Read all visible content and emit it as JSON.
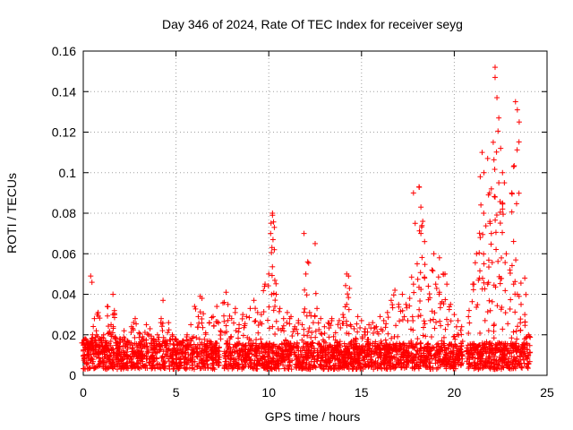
{
  "chart_data": {
    "type": "scatter",
    "title": "Day 346 of 2024, Rate Of TEC Index for receiver seyg",
    "xlabel": "GPS time / hours",
    "ylabel": "ROTI / TECUs",
    "xlim": [
      0,
      25
    ],
    "ylim": [
      0,
      0.16
    ],
    "xticks": [
      0,
      5,
      10,
      15,
      20,
      25
    ],
    "yticks": [
      0,
      0.02,
      0.04,
      0.06,
      0.08,
      0.1,
      0.12,
      0.14,
      0.16
    ],
    "xtick_labels": [
      "0",
      "5",
      "10",
      "15",
      "20",
      "25"
    ],
    "ytick_labels": [
      "0",
      "0.02",
      "0.04",
      "0.06",
      "0.08",
      "0.1",
      "0.12",
      "0.14",
      "0.16"
    ],
    "grid": true,
    "marker": "+",
    "color": "#ff0000",
    "series": [
      {
        "x": [
          0.0,
          0.1,
          0.2,
          0.3,
          0.4,
          0.5,
          0.6,
          0.7,
          0.8,
          0.9,
          1.0,
          1.1,
          1.2,
          1.3,
          1.4,
          1.5,
          1.6,
          1.7,
          1.8,
          1.9,
          2.0,
          2.2,
          2.4,
          2.6,
          2.8,
          3.0,
          3.2,
          3.4,
          3.6,
          3.8,
          4.0,
          4.2,
          4.4,
          4.6,
          4.8,
          5.0,
          5.2,
          5.4,
          5.6,
          5.8,
          6.0,
          6.2,
          6.4,
          6.6,
          6.8,
          7.0,
          7.2,
          7.4,
          7.6,
          7.8,
          8.0,
          8.2,
          8.4,
          8.6,
          8.8,
          9.0,
          9.2,
          9.4,
          9.6,
          9.8,
          10.0,
          10.1,
          10.2,
          10.3,
          10.4,
          10.6,
          10.8,
          11.0,
          11.2,
          11.4,
          11.6,
          11.8,
          12.0,
          12.2,
          12.4,
          12.6,
          12.8,
          13.0,
          13.2,
          13.4,
          13.6,
          13.8,
          14.0,
          14.2,
          14.4,
          14.6,
          14.8,
          15.0,
          15.2,
          15.4,
          15.6,
          15.8,
          16.0,
          16.2,
          16.4,
          16.6,
          16.8,
          17.0,
          17.2,
          17.4,
          17.6,
          17.8,
          18.0,
          18.2,
          18.4,
          18.6,
          18.8,
          19.0,
          19.2,
          19.4,
          19.6,
          19.8,
          20.0,
          20.2,
          20.4,
          20.8,
          21.0,
          21.2,
          21.4,
          21.6,
          21.8,
          22.0,
          22.2,
          22.4,
          22.6,
          22.8,
          23.0,
          23.2,
          23.4,
          23.6,
          23.8,
          24.0,
          0.4,
          1.6,
          4.3,
          6.3,
          7.7,
          10.2,
          10.3,
          11.9,
          12.1,
          12.5,
          14.2,
          14.3,
          17.8,
          18.1,
          18.2,
          18.3,
          18.4,
          18.9,
          19.2,
          19.5,
          21.4,
          21.5,
          21.6,
          21.8,
          21.9,
          22.0,
          22.1,
          22.2,
          22.2,
          22.3,
          22.4,
          22.5,
          22.6,
          22.7,
          23.1,
          23.2,
          23.3,
          23.4,
          23.5,
          23.8
        ],
        "y": [
          0.012,
          0.018,
          0.01,
          0.015,
          0.008,
          0.02,
          0.028,
          0.022,
          0.031,
          0.018,
          0.015,
          0.02,
          0.017,
          0.034,
          0.021,
          0.025,
          0.03,
          0.019,
          0.016,
          0.014,
          0.018,
          0.022,
          0.017,
          0.024,
          0.028,
          0.021,
          0.019,
          0.025,
          0.023,
          0.018,
          0.02,
          0.028,
          0.017,
          0.026,
          0.02,
          0.018,
          0.015,
          0.017,
          0.02,
          0.025,
          0.034,
          0.029,
          0.038,
          0.021,
          0.026,
          0.029,
          0.034,
          0.022,
          0.036,
          0.035,
          0.028,
          0.033,
          0.025,
          0.03,
          0.029,
          0.033,
          0.037,
          0.031,
          0.03,
          0.045,
          0.05,
          0.07,
          0.079,
          0.062,
          0.04,
          0.033,
          0.028,
          0.031,
          0.029,
          0.024,
          0.027,
          0.025,
          0.05,
          0.031,
          0.026,
          0.033,
          0.028,
          0.024,
          0.026,
          0.028,
          0.021,
          0.027,
          0.03,
          0.035,
          0.025,
          0.023,
          0.029,
          0.027,
          0.023,
          0.025,
          0.026,
          0.024,
          0.029,
          0.027,
          0.031,
          0.037,
          0.042,
          0.035,
          0.04,
          0.035,
          0.038,
          0.045,
          0.055,
          0.07,
          0.048,
          0.044,
          0.052,
          0.045,
          0.041,
          0.05,
          0.045,
          0.035,
          0.03,
          0.027,
          0.024,
          0.032,
          0.045,
          0.06,
          0.068,
          0.055,
          0.045,
          0.07,
          0.088,
          0.095,
          0.085,
          0.06,
          0.052,
          0.045,
          0.04,
          0.035,
          0.03,
          0.02,
          0.049,
          0.04,
          0.037,
          0.039,
          0.041,
          0.08,
          0.073,
          0.07,
          0.056,
          0.065,
          0.05,
          0.049,
          0.09,
          0.093,
          0.083,
          0.076,
          0.066,
          0.06,
          0.058,
          0.05,
          0.098,
          0.11,
          0.1,
          0.107,
          0.09,
          0.092,
          0.115,
          0.152,
          0.147,
          0.137,
          0.127,
          0.112,
          0.1,
          0.095,
          0.09,
          0.103,
          0.135,
          0.131,
          0.125,
          0.048
        ]
      }
    ],
    "baseline_band": {
      "y_low": 0.003,
      "y_high": 0.016
    }
  }
}
